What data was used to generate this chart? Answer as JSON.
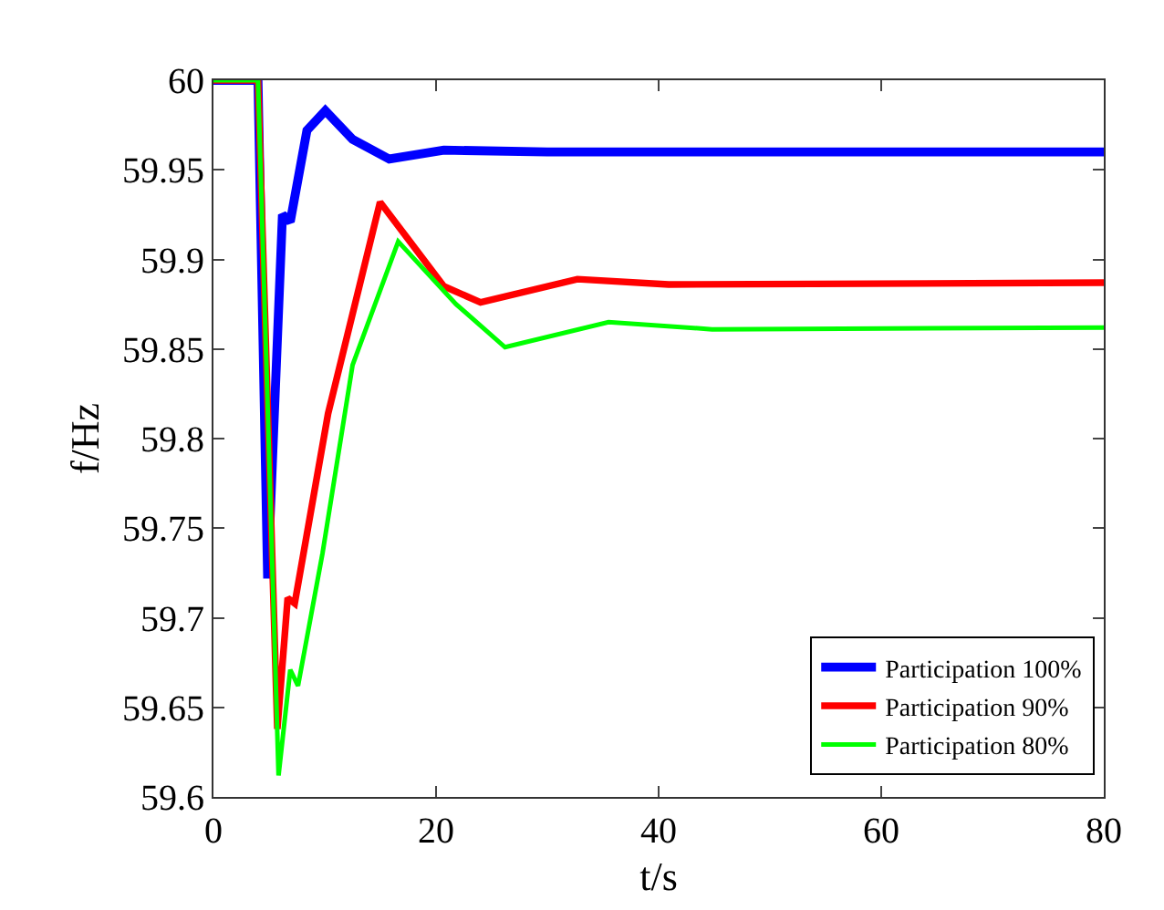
{
  "chart_data": {
    "type": "line",
    "xlabel": "t/s",
    "ylabel": "f/Hz",
    "xlim": [
      0,
      80
    ],
    "xticks": [
      0,
      20,
      40,
      60,
      80
    ],
    "ylim": [
      59.6,
      60
    ],
    "yticks": [
      59.6,
      59.65,
      59.7,
      59.75,
      59.8,
      59.85,
      59.9,
      59.95,
      60
    ],
    "grid": false,
    "legend": "bottom right",
    "marker": "none",
    "line_style": "solid",
    "series": [
      {
        "name": "Participation 100%",
        "color": "#0000ff",
        "x": [
          0,
          4,
          4.87,
          6.2,
          6.9,
          8.4,
          10.05,
          12.5,
          15.8,
          20.7,
          30,
          80
        ],
        "values": [
          60,
          60,
          59.722,
          59.925,
          59.921,
          59.972,
          59.983,
          59.967,
          59.956,
          59.961,
          59.96,
          59.96
        ]
      },
      {
        "name": "Participation 90%",
        "color": "#ff0000",
        "x": [
          0,
          4,
          5.74,
          6.67,
          7.3,
          10.3,
          14.97,
          20.7,
          24,
          32.7,
          40.9,
          80
        ],
        "values": [
          60,
          60,
          59.638,
          59.711,
          59.708,
          59.814,
          59.932,
          59.885,
          59.876,
          59.889,
          59.886,
          59.887
        ]
      },
      {
        "name": "Participation 80%",
        "color": "#00ff00",
        "x": [
          0,
          4,
          5.85,
          6.9,
          7.6,
          9.8,
          12.5,
          16.6,
          21.8,
          26.2,
          35.5,
          44.8,
          80
        ],
        "values": [
          60,
          60,
          59.612,
          59.671,
          59.662,
          59.736,
          59.841,
          59.91,
          59.875,
          59.851,
          59.865,
          59.861,
          59.862
        ]
      }
    ]
  }
}
